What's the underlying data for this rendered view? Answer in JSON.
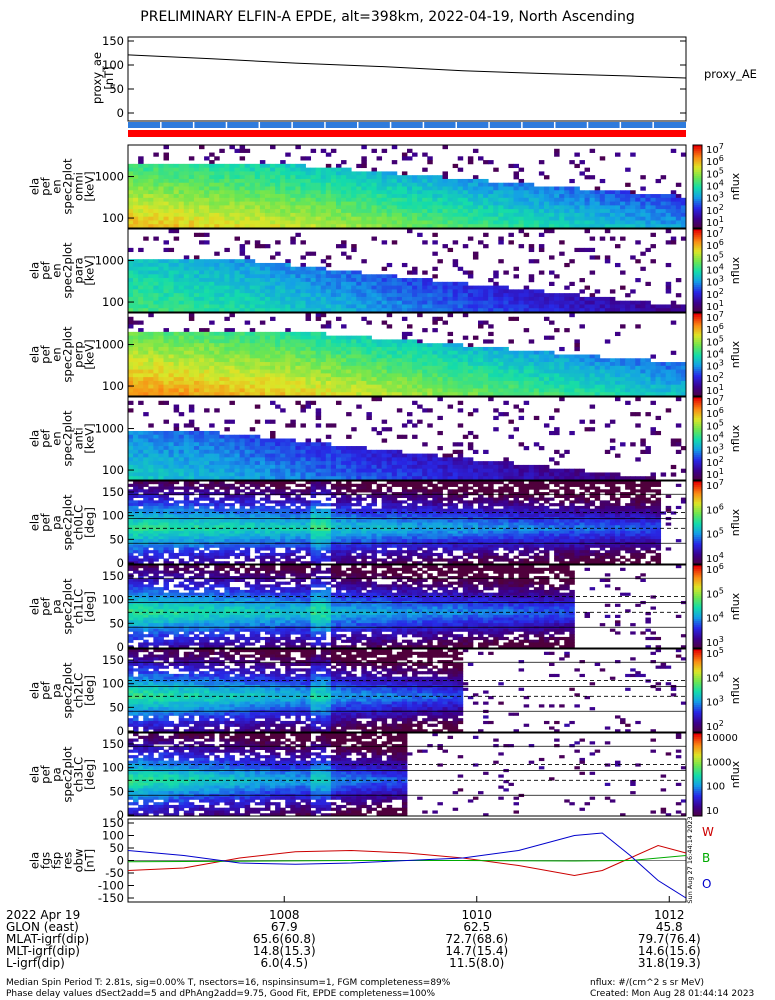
{
  "title": "PRELIMINARY ELFIN-A EPDE, alt=398km, 2022-04-19, North Ascending",
  "proxy_ae": {
    "ylabel": "proxy_ae\n[nT]",
    "legend": "proxy_AE",
    "ticks": [
      "150",
      "100",
      "50",
      "0"
    ],
    "line": {
      "x": [
        0,
        0.15,
        0.3,
        0.45,
        0.6,
        0.75,
        0.9,
        1.0
      ],
      "y": [
        121,
        113,
        104,
        97,
        88,
        82,
        77,
        73
      ]
    }
  },
  "bars": {
    "top_color": "#2e7bdc",
    "bottom_color": "#ff0000",
    "stripe_color": "#ffffff",
    "stripe_count": 17
  },
  "energy_panels": [
    {
      "ylabel": [
        "ela",
        "pef",
        "en",
        "spec2plot",
        "omni",
        "[keV]"
      ],
      "ticks": [
        "1000",
        "100"
      ],
      "cbar_ticks": [
        "10^7",
        "10^6",
        "10^5",
        "10^4",
        "10^3",
        "10^2",
        "10^1"
      ],
      "cbar_label": "nflux",
      "profile": "omni"
    },
    {
      "ylabel": [
        "ela",
        "pef",
        "en",
        "spec2plot",
        "para",
        "[keV]"
      ],
      "ticks": [
        "1000",
        "100"
      ],
      "cbar_ticks": [
        "10^7",
        "10^6",
        "10^5",
        "10^4",
        "10^3",
        "10^2",
        "10^1"
      ],
      "cbar_label": "nflux",
      "profile": "para"
    },
    {
      "ylabel": [
        "ela",
        "pef",
        "en",
        "spec2plot",
        "perp",
        "[keV]"
      ],
      "ticks": [
        "1000",
        "100"
      ],
      "cbar_ticks": [
        "10^7",
        "10^6",
        "10^5",
        "10^4",
        "10^3",
        "10^2",
        "10^1"
      ],
      "cbar_label": "nflux",
      "profile": "perp"
    },
    {
      "ylabel": [
        "ela",
        "pef",
        "en",
        "spec2plot",
        "anti",
        "[keV]"
      ],
      "ticks": [
        "1000",
        "100"
      ],
      "cbar_ticks": [
        "10^7",
        "10^6",
        "10^5",
        "10^4",
        "10^3",
        "10^2",
        "10^1"
      ],
      "cbar_label": "nflux",
      "profile": "anti"
    }
  ],
  "pitch_panels": [
    {
      "ylabel": [
        "ela",
        "pef",
        "pa",
        "spec2plot",
        "ch0LC",
        "[deg]"
      ],
      "ticks": [
        "150",
        "100",
        "50",
        "0"
      ],
      "cbar_ticks": [
        "10^7",
        "10^6",
        "10^5",
        "10^4"
      ],
      "cbar_label": "nflux",
      "extent": 0.95
    },
    {
      "ylabel": [
        "ela",
        "pef",
        "pa",
        "spec2plot",
        "ch1LC",
        "[deg]"
      ],
      "ticks": [
        "150",
        "100",
        "50",
        "0"
      ],
      "cbar_ticks": [
        "10^6",
        "10^5",
        "10^4",
        "10^3"
      ],
      "cbar_label": "nflux",
      "extent": 0.8
    },
    {
      "ylabel": [
        "ela",
        "pef",
        "pa",
        "spec2plot",
        "ch2LC",
        "[deg]"
      ],
      "ticks": [
        "150",
        "100",
        "50",
        "0"
      ],
      "cbar_ticks": [
        "10^5",
        "10^4",
        "10^3",
        "10^2"
      ],
      "cbar_label": "nflux",
      "extent": 0.6
    },
    {
      "ylabel": [
        "ela",
        "pef",
        "pa",
        "spec2plot",
        "ch3LC",
        "[deg]"
      ],
      "ticks": [
        "150",
        "100",
        "50",
        "0"
      ],
      "cbar_ticks": [
        "10000",
        "1000",
        "100",
        "10"
      ],
      "cbar_label": "nflux",
      "extent": 0.5
    }
  ],
  "field_panel": {
    "ylabel": [
      "ela",
      "fgs",
      "fsp",
      "res",
      "obw",
      "[nT]"
    ],
    "ticks": [
      "150",
      "100",
      "50",
      "0",
      "-50",
      "-100",
      "-150"
    ],
    "legend": [
      {
        "label": "W",
        "color": "#cc0000"
      },
      {
        "label": "B",
        "color": "#00aa00"
      },
      {
        "label": "O",
        "color": "#0000cc"
      }
    ],
    "side_text": "Sun Aug 27 16:44:14 2023"
  },
  "chart_data": {
    "type": "line",
    "title": "PRELIMINARY ELFIN-A EPDE, alt=398km, 2022-04-19, North Ascending",
    "series": [
      {
        "name": "W",
        "x": [
          0,
          0.1,
          0.2,
          0.3,
          0.4,
          0.5,
          0.6,
          0.7,
          0.8,
          0.85,
          0.9,
          0.95,
          1.0
        ],
        "y": [
          -40,
          -30,
          10,
          35,
          40,
          30,
          10,
          -20,
          -60,
          -40,
          10,
          60,
          30
        ]
      },
      {
        "name": "B",
        "x": [
          0,
          0.2,
          0.4,
          0.6,
          0.8,
          0.9,
          1.0
        ],
        "y": [
          -5,
          -3,
          0,
          0,
          -2,
          0,
          20
        ]
      },
      {
        "name": "O",
        "x": [
          0,
          0.1,
          0.2,
          0.3,
          0.4,
          0.5,
          0.6,
          0.7,
          0.8,
          0.85,
          0.9,
          0.95,
          1.0
        ],
        "y": [
          40,
          20,
          -10,
          -15,
          -10,
          0,
          10,
          40,
          100,
          110,
          20,
          -80,
          -150
        ]
      }
    ],
    "ylim": [
      -150,
      150
    ]
  },
  "x_axis": {
    "date_label": "2022 Apr 19",
    "rows": [
      "GLON (east)",
      "MLAT-igrf(dip)",
      "MLT-igrf(dip)",
      "L-igrf(dip)"
    ],
    "ticks": [
      {
        "time": "1008",
        "frac": 0.28,
        "values": [
          "67.9",
          "65.6(60.8)",
          "14.8(15.3)",
          "6.0(4.5)"
        ]
      },
      {
        "time": "1010",
        "frac": 0.625,
        "values": [
          "62.5",
          "72.7(68.6)",
          "14.7(15.4)",
          "11.5(8.0)"
        ]
      },
      {
        "time": "1012",
        "frac": 0.97,
        "values": [
          "45.8",
          "79.7(76.4)",
          "14.6(15.6)",
          "31.8(19.3)"
        ]
      }
    ]
  },
  "footer": {
    "line1": "Median Spin Period T: 2.81s, sig=0.00% T, nsectors=16, nspinsinsum=1, FGM completeness=89%",
    "line2": "Phase delay values dSect2add=5 and dPhAng2add=9.75, Good Fit, EPDE completeness=100%",
    "right1": "nflux: #/(cm^2 s sr MeV)",
    "right2": "Created: Mon Aug 28 01:44:14 2023"
  }
}
